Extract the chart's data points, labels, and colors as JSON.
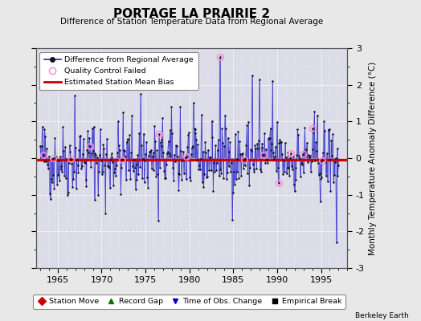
{
  "title": "PORTAGE LA PRAIRIE 2",
  "subtitle": "Difference of Station Temperature Data from Regional Average",
  "ylabel": "Monthly Temperature Anomaly Difference (°C)",
  "xlim": [
    1962.5,
    1998.0
  ],
  "ylim": [
    -3.0,
    3.0
  ],
  "mean_bias": -0.05,
  "bg_color": "#e8e8e8",
  "plot_bg_color": "#dcdce8",
  "line_color": "#3333cc",
  "marker_color": "#111111",
  "bias_color": "#cc0000",
  "qc_color": "#ff88cc",
  "xticks": [
    1965,
    1970,
    1975,
    1980,
    1985,
    1990,
    1995
  ],
  "yticks_right": [
    -3,
    -2,
    -1,
    0,
    1,
    2,
    3
  ],
  "seed": 42,
  "n_points": 408,
  "start_year": 1963.0,
  "end_year": 1997.0
}
